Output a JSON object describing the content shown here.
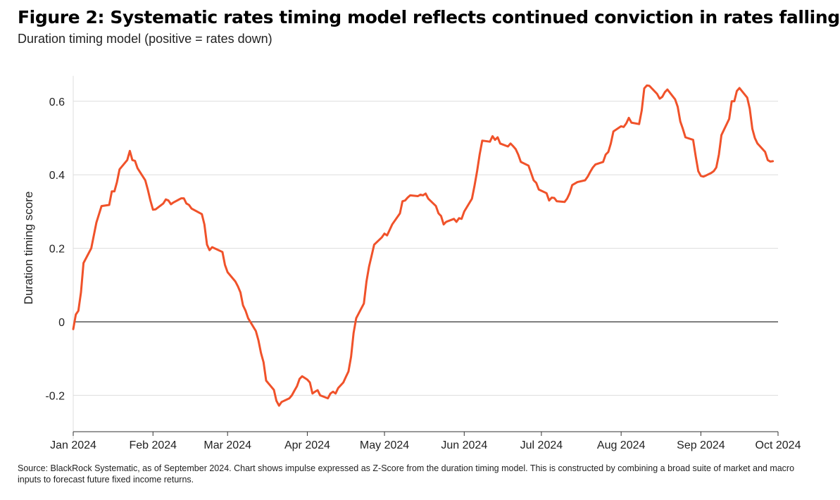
{
  "title": "Figure 2: Systematic rates timing model reflects continued conviction in rates falling",
  "subtitle": "Duration timing model (positive = rates down)",
  "source": "Source: BlackRock Systematic, as of September 2024. Chart shows impulse expressed as Z-Score from the duration timing model. This is constructed by combining a broad suite of market and macro inputs to forecast future fixed income returns.",
  "colors": {
    "line": "#f0522a",
    "grid": "#dddddd",
    "axis": "#333333"
  },
  "chart_data": {
    "type": "line",
    "title": "Figure 2: Systematic rates timing model reflects continued conviction in rates falling",
    "subtitle": "Duration timing model (positive = rates down)",
    "xlabel": "",
    "ylabel": "Duration timing score",
    "ylim": [
      -0.3,
      0.65
    ],
    "xlim": [
      "2024-01-01",
      "2024-10-01"
    ],
    "grid": true,
    "legend": "none",
    "y_ticks": [
      {
        "value": 0.6,
        "label": "0.6"
      },
      {
        "value": 0.4,
        "label": "0.4"
      },
      {
        "value": 0.2,
        "label": "0.2"
      },
      {
        "value": 0,
        "label": "0"
      },
      {
        "value": -0.2,
        "label": "-0.2"
      }
    ],
    "x_ticks": [
      {
        "date": "2024-01-01",
        "label": "Jan 2024"
      },
      {
        "date": "2024-02-01",
        "label": "Feb 2024"
      },
      {
        "date": "2024-03-01",
        "label": "Mar 2024"
      },
      {
        "date": "2024-04-01",
        "label": "Apr 2024"
      },
      {
        "date": "2024-05-01",
        "label": "May 2024"
      },
      {
        "date": "2024-06-01",
        "label": "Jun 2024"
      },
      {
        "date": "2024-07-01",
        "label": "Jul 2024"
      },
      {
        "date": "2024-08-01",
        "label": "Aug 2024"
      },
      {
        "date": "2024-09-01",
        "label": "Sep 2024"
      },
      {
        "date": "2024-10-01",
        "label": "Oct 2024"
      }
    ],
    "series": [
      {
        "points": [
          [
            "2024-01-01",
            -0.02
          ],
          [
            "2024-01-02",
            0.02
          ],
          [
            "2024-01-03",
            0.03
          ],
          [
            "2024-01-04",
            0.08
          ],
          [
            "2024-01-05",
            0.16
          ],
          [
            "2024-01-08",
            0.2
          ],
          [
            "2024-01-10",
            0.27
          ],
          [
            "2024-01-12",
            0.315
          ],
          [
            "2024-01-15",
            0.318
          ],
          [
            "2024-01-16",
            0.355
          ],
          [
            "2024-01-17",
            0.355
          ],
          [
            "2024-01-18",
            0.38
          ],
          [
            "2024-01-19",
            0.415
          ],
          [
            "2024-01-22",
            0.44
          ],
          [
            "2024-01-23",
            0.465
          ],
          [
            "2024-01-24",
            0.44
          ],
          [
            "2024-01-25",
            0.438
          ],
          [
            "2024-01-26",
            0.418
          ],
          [
            "2024-01-29",
            0.385
          ],
          [
            "2024-01-30",
            0.36
          ],
          [
            "2024-01-31",
            0.33
          ],
          [
            "2024-02-01",
            0.305
          ],
          [
            "2024-02-02",
            0.306
          ],
          [
            "2024-02-05",
            0.322
          ],
          [
            "2024-02-06",
            0.333
          ],
          [
            "2024-02-07",
            0.33
          ],
          [
            "2024-02-08",
            0.32
          ],
          [
            "2024-02-09",
            0.325
          ],
          [
            "2024-02-12",
            0.336
          ],
          [
            "2024-02-13",
            0.336
          ],
          [
            "2024-02-14",
            0.322
          ],
          [
            "2024-02-15",
            0.318
          ],
          [
            "2024-02-16",
            0.308
          ],
          [
            "2024-02-20",
            0.293
          ],
          [
            "2024-02-21",
            0.265
          ],
          [
            "2024-02-22",
            0.21
          ],
          [
            "2024-02-23",
            0.195
          ],
          [
            "2024-02-24",
            0.203
          ],
          [
            "2024-02-28",
            0.19
          ],
          [
            "2024-02-29",
            0.155
          ],
          [
            "2024-03-01",
            0.135
          ],
          [
            "2024-03-04",
            0.11
          ],
          [
            "2024-03-05",
            0.097
          ],
          [
            "2024-03-06",
            0.08
          ],
          [
            "2024-03-07",
            0.045
          ],
          [
            "2024-03-08",
            0.03
          ],
          [
            "2024-03-09",
            0.01
          ],
          [
            "2024-03-12",
            -0.025
          ],
          [
            "2024-03-13",
            -0.05
          ],
          [
            "2024-03-14",
            -0.085
          ],
          [
            "2024-03-15",
            -0.11
          ],
          [
            "2024-03-16",
            -0.16
          ],
          [
            "2024-03-19",
            -0.185
          ],
          [
            "2024-03-20",
            -0.215
          ],
          [
            "2024-03-21",
            -0.228
          ],
          [
            "2024-03-22",
            -0.218
          ],
          [
            "2024-03-25",
            -0.208
          ],
          [
            "2024-03-26",
            -0.2
          ],
          [
            "2024-03-27",
            -0.187
          ],
          [
            "2024-03-28",
            -0.175
          ],
          [
            "2024-03-29",
            -0.155
          ],
          [
            "2024-03-30",
            -0.148
          ],
          [
            "2024-04-01",
            -0.157
          ],
          [
            "2024-04-02",
            -0.165
          ],
          [
            "2024-04-03",
            -0.195
          ],
          [
            "2024-04-04",
            -0.19
          ],
          [
            "2024-04-05",
            -0.186
          ],
          [
            "2024-04-06",
            -0.2
          ],
          [
            "2024-04-09",
            -0.208
          ],
          [
            "2024-04-10",
            -0.195
          ],
          [
            "2024-04-11",
            -0.19
          ],
          [
            "2024-04-12",
            -0.195
          ],
          [
            "2024-04-13",
            -0.18
          ],
          [
            "2024-04-15",
            -0.165
          ],
          [
            "2024-04-16",
            -0.15
          ],
          [
            "2024-04-17",
            -0.135
          ],
          [
            "2024-04-18",
            -0.095
          ],
          [
            "2024-04-19",
            -0.03
          ],
          [
            "2024-04-20",
            0.01
          ],
          [
            "2024-04-23",
            0.05
          ],
          [
            "2024-04-24",
            0.11
          ],
          [
            "2024-04-25",
            0.15
          ],
          [
            "2024-04-26",
            0.18
          ],
          [
            "2024-04-27",
            0.21
          ],
          [
            "2024-04-30",
            0.23
          ],
          [
            "2024-05-01",
            0.24
          ],
          [
            "2024-05-02",
            0.235
          ],
          [
            "2024-05-03",
            0.25
          ],
          [
            "2024-05-04",
            0.265
          ],
          [
            "2024-05-07",
            0.295
          ],
          [
            "2024-05-08",
            0.328
          ],
          [
            "2024-05-09",
            0.33
          ],
          [
            "2024-05-10",
            0.338
          ],
          [
            "2024-05-11",
            0.344
          ],
          [
            "2024-05-14",
            0.342
          ],
          [
            "2024-05-15",
            0.346
          ],
          [
            "2024-05-16",
            0.344
          ],
          [
            "2024-05-17",
            0.349
          ],
          [
            "2024-05-18",
            0.335
          ],
          [
            "2024-05-21",
            0.315
          ],
          [
            "2024-05-22",
            0.295
          ],
          [
            "2024-05-23",
            0.288
          ],
          [
            "2024-05-24",
            0.265
          ],
          [
            "2024-05-25",
            0.272
          ],
          [
            "2024-05-28",
            0.28
          ],
          [
            "2024-05-29",
            0.272
          ],
          [
            "2024-05-30",
            0.282
          ],
          [
            "2024-05-31",
            0.28
          ],
          [
            "2024-06-01",
            0.3
          ],
          [
            "2024-06-04",
            0.335
          ],
          [
            "2024-06-05",
            0.37
          ],
          [
            "2024-06-06",
            0.41
          ],
          [
            "2024-06-07",
            0.455
          ],
          [
            "2024-06-08",
            0.493
          ],
          [
            "2024-06-11",
            0.49
          ],
          [
            "2024-06-12",
            0.505
          ],
          [
            "2024-06-13",
            0.495
          ],
          [
            "2024-06-14",
            0.502
          ],
          [
            "2024-06-15",
            0.485
          ],
          [
            "2024-06-18",
            0.477
          ],
          [
            "2024-06-19",
            0.485
          ],
          [
            "2024-06-20",
            0.478
          ],
          [
            "2024-06-21",
            0.47
          ],
          [
            "2024-06-22",
            0.455
          ],
          [
            "2024-06-23",
            0.435
          ],
          [
            "2024-06-26",
            0.425
          ],
          [
            "2024-06-27",
            0.405
          ],
          [
            "2024-06-28",
            0.385
          ],
          [
            "2024-06-29",
            0.378
          ],
          [
            "2024-06-30",
            0.36
          ],
          [
            "2024-07-03",
            0.35
          ],
          [
            "2024-07-04",
            0.33
          ],
          [
            "2024-07-05",
            0.338
          ],
          [
            "2024-07-06",
            0.337
          ],
          [
            "2024-07-07",
            0.328
          ],
          [
            "2024-07-10",
            0.326
          ],
          [
            "2024-07-11",
            0.335
          ],
          [
            "2024-07-12",
            0.35
          ],
          [
            "2024-07-13",
            0.372
          ],
          [
            "2024-07-15",
            0.38
          ],
          [
            "2024-07-18",
            0.385
          ],
          [
            "2024-07-19",
            0.395
          ],
          [
            "2024-07-20",
            0.408
          ],
          [
            "2024-07-21",
            0.42
          ],
          [
            "2024-07-22",
            0.428
          ],
          [
            "2024-07-25",
            0.435
          ],
          [
            "2024-07-26",
            0.455
          ],
          [
            "2024-07-27",
            0.462
          ],
          [
            "2024-07-28",
            0.485
          ],
          [
            "2024-07-29",
            0.518
          ],
          [
            "2024-08-01",
            0.532
          ],
          [
            "2024-08-02",
            0.53
          ],
          [
            "2024-08-03",
            0.54
          ],
          [
            "2024-08-04",
            0.555
          ],
          [
            "2024-08-05",
            0.542
          ],
          [
            "2024-08-08",
            0.538
          ],
          [
            "2024-08-09",
            0.575
          ],
          [
            "2024-08-10",
            0.635
          ],
          [
            "2024-08-11",
            0.643
          ],
          [
            "2024-08-12",
            0.642
          ],
          [
            "2024-08-15",
            0.62
          ],
          [
            "2024-08-16",
            0.607
          ],
          [
            "2024-08-17",
            0.612
          ],
          [
            "2024-08-18",
            0.625
          ],
          [
            "2024-08-19",
            0.632
          ],
          [
            "2024-08-22",
            0.605
          ],
          [
            "2024-08-23",
            0.585
          ],
          [
            "2024-08-24",
            0.545
          ],
          [
            "2024-08-25",
            0.525
          ],
          [
            "2024-08-26",
            0.502
          ],
          [
            "2024-08-29",
            0.495
          ],
          [
            "2024-08-30",
            0.45
          ],
          [
            "2024-08-31",
            0.41
          ],
          [
            "2024-09-01",
            0.397
          ],
          [
            "2024-09-02",
            0.395
          ],
          [
            "2024-09-03",
            0.398
          ],
          [
            "2024-09-05",
            0.405
          ],
          [
            "2024-09-06",
            0.41
          ],
          [
            "2024-09-07",
            0.42
          ],
          [
            "2024-09-08",
            0.455
          ],
          [
            "2024-09-09",
            0.508
          ],
          [
            "2024-09-12",
            0.552
          ],
          [
            "2024-09-13",
            0.6
          ],
          [
            "2024-09-14",
            0.6
          ],
          [
            "2024-09-15",
            0.628
          ],
          [
            "2024-09-16",
            0.636
          ],
          [
            "2024-09-19",
            0.61
          ],
          [
            "2024-09-20",
            0.58
          ],
          [
            "2024-09-21",
            0.525
          ],
          [
            "2024-09-22",
            0.5
          ],
          [
            "2024-09-23",
            0.485
          ],
          [
            "2024-09-26",
            0.462
          ],
          [
            "2024-09-27",
            0.44
          ],
          [
            "2024-09-28",
            0.436
          ],
          [
            "2024-09-29",
            0.437
          ]
        ]
      }
    ]
  }
}
